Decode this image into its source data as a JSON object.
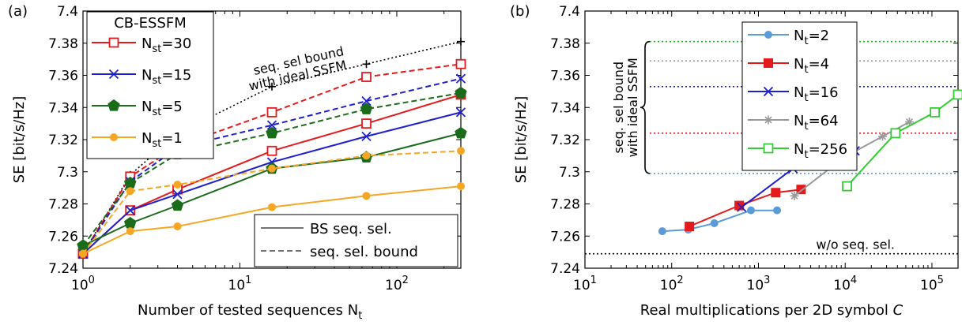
{
  "chart_data": [
    {
      "type": "line",
      "panel_label": "(a)",
      "xlabel": "Number of tested sequences N_t",
      "ylabel": "SE [bit/s/Hz]",
      "xscale": "log",
      "xlim": [
        1,
        256
      ],
      "ylim": [
        7.24,
        7.4
      ],
      "y_ticks": [
        7.24,
        7.26,
        7.28,
        7.3,
        7.32,
        7.34,
        7.36,
        7.38,
        7.4
      ],
      "y_tick_labels": [
        "7.24",
        "7.26",
        "7.28",
        "7.3",
        "7.32",
        "7.34",
        "7.36",
        "7.38",
        "7.4"
      ],
      "x_ticks": [
        {
          "value": 1,
          "base": "10",
          "exp": "0"
        },
        {
          "value": 10,
          "base": "10",
          "exp": "1"
        },
        {
          "value": 100,
          "base": "10",
          "exp": "2"
        }
      ],
      "legend_title": "CB-ESSFM",
      "legend_placement": "top-left",
      "style_legend": {
        "placement": "bottom-right",
        "solid": "BS seq. sel.",
        "dashed": "seq. sel. bound"
      },
      "annotation": [
        "seq. sel bound",
        "with ideal SSFM"
      ],
      "x": [
        1,
        2,
        4,
        16,
        64,
        256
      ],
      "series": [
        {
          "name": "N_st=30",
          "sub": "st",
          "value_label": "=30",
          "color": "#e41a1c",
          "marker": "square-open",
          "solid": [
            7.249,
            7.276,
            7.289,
            7.313,
            7.33,
            7.348
          ],
          "dashed": [
            7.249,
            7.297,
            7.316,
            7.337,
            7.359,
            7.367
          ]
        },
        {
          "name": "N_st=15",
          "sub": "st",
          "value_label": "=15",
          "color": "#1f1fcf",
          "marker": "x",
          "solid": [
            7.249,
            7.276,
            7.286,
            7.306,
            7.322,
            7.337
          ],
          "dashed": [
            7.249,
            7.294,
            7.315,
            7.329,
            7.344,
            7.358
          ]
        },
        {
          "name": "N_st=5",
          "sub": "st",
          "value_label": "=5",
          "color": "#1a6b1a",
          "marker": "pentagon",
          "solid": [
            7.254,
            7.268,
            7.279,
            7.302,
            7.309,
            7.324
          ],
          "dashed": [
            7.254,
            7.293,
            7.311,
            7.324,
            7.339,
            7.349
          ]
        },
        {
          "name": "N_st=1",
          "sub": "st",
          "value_label": "=1",
          "color": "#f5a623",
          "marker": "circle",
          "solid": [
            7.249,
            7.263,
            7.266,
            7.278,
            7.285,
            7.291
          ],
          "dashed": [
            7.249,
            7.288,
            7.292,
            7.302,
            7.31,
            7.313
          ]
        }
      ],
      "ideal_bound": {
        "color": "#000000",
        "marker": "plus",
        "values": [
          7.249,
          7.298,
          7.324,
          7.353,
          7.367,
          7.381
        ]
      }
    },
    {
      "type": "line",
      "panel_label": "(b)",
      "xlabel": "Real multiplications per 2D symbol C",
      "ylabel": "SE [bit/s/Hz]",
      "xscale": "log",
      "xlim": [
        10,
        200000
      ],
      "ylim": [
        7.24,
        7.4
      ],
      "y_ticks": [
        7.24,
        7.26,
        7.28,
        7.3,
        7.32,
        7.34,
        7.36,
        7.38,
        7.4
      ],
      "y_tick_labels": [
        "7.24",
        "7.26",
        "7.28",
        "7.3",
        "7.32",
        "7.34",
        "7.36",
        "7.38",
        "7.4"
      ],
      "x_ticks": [
        {
          "value": 10,
          "base": "10",
          "exp": "1"
        },
        {
          "value": 100,
          "base": "10",
          "exp": "2"
        },
        {
          "value": 1000,
          "base": "10",
          "exp": "3"
        },
        {
          "value": 10000,
          "base": "10",
          "exp": "4"
        },
        {
          "value": 100000,
          "base": "10",
          "exp": "5"
        }
      ],
      "legend_placement": "top-right",
      "brace_annotation": [
        "seq. sel bound",
        "with ideal SSFM"
      ],
      "baseline": {
        "label": "w/o seq. sel.",
        "value": 7.249,
        "color": "#000000"
      },
      "reference_lines": [
        {
          "value": 7.381,
          "color": "#22aa22"
        },
        {
          "value": 7.369,
          "color": "#999999"
        },
        {
          "value": 7.353,
          "color": "#1f1fcf"
        },
        {
          "value": 7.324,
          "color": "#e41a1c"
        },
        {
          "value": 7.299,
          "color": "#5b9bd5"
        }
      ],
      "series": [
        {
          "name": "N_t=2",
          "sub": "t",
          "value_label": "=2",
          "color": "#5b9bd5",
          "marker": "circle",
          "x": [
            78,
            155,
            310,
            820,
            1640
          ],
          "y": [
            7.263,
            7.264,
            7.268,
            7.276,
            7.276
          ]
        },
        {
          "name": "N_t=4",
          "sub": "t",
          "value_label": "=4",
          "color": "#e41a1c",
          "marker": "square",
          "x": [
            160,
            600,
            1580,
            3100
          ],
          "y": [
            7.266,
            7.279,
            7.287,
            7.289
          ]
        },
        {
          "name": "N_t=16",
          "sub": "t",
          "value_label": "=16",
          "color": "#1f1fcf",
          "marker": "x",
          "x": [
            640,
            2500,
            7000,
            13000
          ],
          "y": [
            7.278,
            7.302,
            7.306,
            7.313
          ]
        },
        {
          "name": "N_t=64",
          "sub": "t",
          "value_label": "=64",
          "color": "#999999",
          "marker": "star",
          "x": [
            2600,
            9700,
            27000,
            55000
          ],
          "y": [
            7.285,
            7.309,
            7.322,
            7.331
          ]
        },
        {
          "name": "N_t=256",
          "sub": "t",
          "value_label": "=256",
          "color": "#33cc33",
          "marker": "square-open",
          "x": [
            10500,
            38000,
            108000,
            200000
          ],
          "y": [
            7.291,
            7.324,
            7.337,
            7.348
          ]
        }
      ]
    }
  ]
}
